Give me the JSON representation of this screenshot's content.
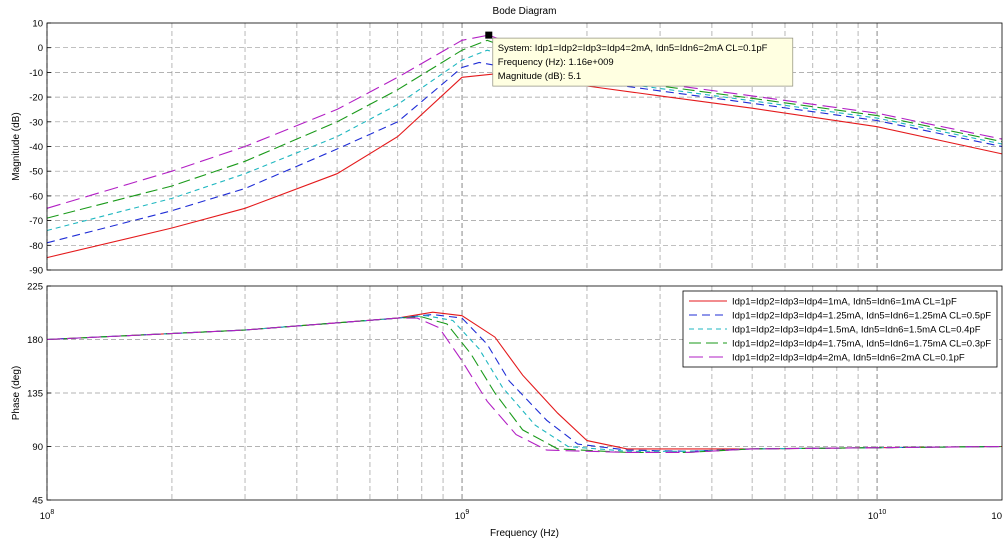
{
  "chart_data": [
    {
      "type": "line",
      "panel": "magnitude",
      "title": "Bode Diagram",
      "xlabel": "",
      "ylabel": "Magnitude (dB)",
      "xscale": "log",
      "xlim": [
        100000000,
        20000000000
      ],
      "ylim": [
        -90,
        10
      ],
      "yticks": [
        "10",
        "0",
        "-10",
        "-20",
        "-30",
        "-40",
        "-50",
        "-60",
        "-70",
        "-80",
        "-90"
      ],
      "grid": true,
      "series": [
        {
          "name": "Idp1=Idp2=Idp3=Idp4=1mA, Idn5=Idn6=1mA CL=1pF",
          "color": "#e41a1c",
          "dash": "solid",
          "x": [
            100000000,
            200000000,
            300000000,
            500000000,
            700000000,
            1000000000,
            1300000000,
            2000000000,
            3000000000,
            5000000000,
            10000000000,
            20000000000
          ],
          "y": [
            -85,
            -73,
            -65,
            -51,
            -36,
            -12,
            -10,
            -15.5,
            -19.5,
            -24.5,
            -32,
            -43
          ]
        },
        {
          "name": "Idp1=Idp2=Idp3=Idp4=1.25mA, Idn5=Idn6=1.25mA CL=0.5pF",
          "color": "#1f2dd6",
          "dash": "8,5",
          "x": [
            100000000,
            200000000,
            300000000,
            500000000,
            700000000,
            1000000000,
            1100000000,
            2000000000,
            3000000000,
            5000000000,
            10000000000,
            20000000000
          ],
          "y": [
            -79,
            -66,
            -57,
            -41,
            -30,
            -8,
            -6,
            -13.5,
            -17.5,
            -22.5,
            -29.5,
            -40
          ]
        },
        {
          "name": "Idp1=Idp2=Idp3=Idp4=1.5mA, Idn5=Idn6=1.5mA CL=0.4pF",
          "color": "#1fb7c0",
          "dash": "5,4",
          "x": [
            100000000,
            200000000,
            300000000,
            500000000,
            700000000,
            1000000000,
            1150000000,
            2000000000,
            3000000000,
            5000000000,
            10000000000,
            20000000000
          ],
          "y": [
            -74,
            -61,
            -51,
            -36,
            -23,
            -5,
            -1,
            -12.5,
            -16.5,
            -21.5,
            -28.5,
            -39
          ]
        },
        {
          "name": "Idp1=Idp2=Idp3=Idp4=1.75mA, Idn5=Idn6=1.75mA CL=0.3pF",
          "color": "#1a9a1a",
          "dash": "12,5",
          "x": [
            100000000,
            200000000,
            300000000,
            500000000,
            700000000,
            1000000000,
            1150000000,
            2000000000,
            3000000000,
            5000000000,
            10000000000,
            20000000000
          ],
          "y": [
            -69,
            -56,
            -46,
            -30,
            -17,
            -1,
            3,
            -11.5,
            -15.5,
            -20.5,
            -27.5,
            -38
          ]
        },
        {
          "name": "Idp1=Idp2=Idp3=Idp4=2mA, Idn5=Idn6=2mA CL=0.1pF",
          "color": "#b21fc4",
          "dash": "14,6",
          "x": [
            100000000,
            200000000,
            300000000,
            500000000,
            700000000,
            1000000000,
            1160000000,
            2000000000,
            3000000000,
            5000000000,
            10000000000,
            20000000000
          ],
          "y": [
            -65,
            -50,
            -40,
            -25,
            -12,
            3,
            5.1,
            -10.5,
            -14.5,
            -19.5,
            -26.5,
            -37
          ]
        }
      ],
      "datatip": {
        "x": 1160000000,
        "y": 5.1,
        "lines": [
          "System: Idp1=Idp2=Idp3=Idp4=2mA, Idn5=Idn6=2mA CL=0.1pF",
          "Frequency (Hz): 1.16e+009",
          "Magnitude (dB): 5.1"
        ]
      }
    },
    {
      "type": "line",
      "panel": "phase",
      "xlabel": "Frequency  (Hz)",
      "ylabel": "Phase (deg)",
      "xscale": "log",
      "xlim": [
        100000000,
        20000000000
      ],
      "ylim": [
        45,
        225
      ],
      "yticks": [
        "225",
        "180",
        "135",
        "90",
        "45"
      ],
      "xticks": [
        {
          "base": "10",
          "exp": "8",
          "value": 100000000
        },
        {
          "base": "10",
          "exp": "9",
          "value": 1000000000
        },
        {
          "base": "10",
          "exp": "10",
          "value": 10000000000
        },
        {
          "base": "10",
          "exp": "",
          "value": 20000000000
        }
      ],
      "grid": true,
      "legend": "top-right",
      "series": [
        {
          "name": "Idp1=Idp2=Idp3=Idp4=1mA, Idn5=Idn6=1mA CL=1pF",
          "color": "#e41a1c",
          "dash": "solid",
          "x": [
            100000000,
            300000000,
            700000000,
            850000000,
            1000000000,
            1200000000,
            1400000000,
            1700000000,
            2000000000,
            2500000000,
            3500000000,
            5000000000,
            10000000000,
            20000000000
          ],
          "y": [
            180,
            188,
            198,
            203,
            200,
            182,
            150,
            118,
            95,
            88,
            88,
            88,
            89,
            90
          ]
        },
        {
          "name": "Idp1=Idp2=Idp3=Idp4=1.25mA, Idn5=Idn6=1.25mA CL=0.5pF",
          "color": "#1f2dd6",
          "dash": "8,5",
          "x": [
            100000000,
            300000000,
            700000000,
            850000000,
            1000000000,
            1150000000,
            1300000000,
            1600000000,
            1900000000,
            2500000000,
            3500000000,
            5000000000,
            10000000000,
            20000000000
          ],
          "y": [
            180,
            188,
            198,
            201,
            198,
            176,
            145,
            112,
            92,
            87,
            86,
            88,
            89,
            90
          ]
        },
        {
          "name": "Idp1=Idp2=Idp3=Idp4=1.5mA, Idn5=Idn6=1.5mA CL=0.4pF",
          "color": "#1fb7c0",
          "dash": "5,4",
          "x": [
            100000000,
            300000000,
            700000000,
            820000000,
            950000000,
            1100000000,
            1250000000,
            1500000000,
            1800000000,
            2500000000,
            3500000000,
            5000000000,
            10000000000,
            20000000000
          ],
          "y": [
            180,
            188,
            198,
            200,
            196,
            172,
            140,
            108,
            90,
            86,
            86,
            88,
            89,
            90
          ]
        },
        {
          "name": "Idp1=Idp2=Idp3=Idp4=1.75mA, Idn5=Idn6=1.75mA CL=0.3pF",
          "color": "#1a9a1a",
          "dash": "12,5",
          "x": [
            100000000,
            300000000,
            700000000,
            800000000,
            920000000,
            1050000000,
            1200000000,
            1400000000,
            1700000000,
            2500000000,
            3500000000,
            5000000000,
            10000000000,
            20000000000
          ],
          "y": [
            180,
            188,
            198,
            199,
            193,
            168,
            135,
            104,
            88,
            85,
            85,
            88,
            89,
            90
          ]
        },
        {
          "name": "Idp1=Idp2=Idp3=Idp4=2mA, Idn5=Idn6=2mA CL=0.1pF",
          "color": "#b21fc4",
          "dash": "14,6",
          "x": [
            100000000,
            300000000,
            700000000,
            780000000,
            880000000,
            1000000000,
            1150000000,
            1350000000,
            1600000000,
            2500000000,
            3500000000,
            5000000000,
            10000000000,
            20000000000
          ],
          "y": [
            180,
            188,
            198,
            198,
            190,
            162,
            128,
            100,
            87,
            85,
            85,
            88,
            89,
            90
          ]
        }
      ]
    }
  ]
}
